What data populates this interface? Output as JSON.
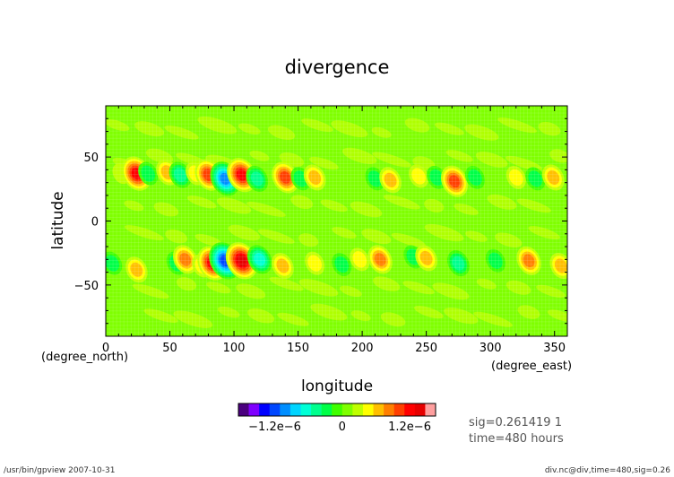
{
  "chart_data": {
    "type": "heatmap",
    "title": "divergence",
    "xlabel": "longitude",
    "ylabel": "latitude",
    "x_unit": "(degree_east)",
    "y_unit": "(degree_north)",
    "xlim": [
      0,
      360
    ],
    "ylim": [
      -90,
      90
    ],
    "x_ticks": [
      0,
      50,
      100,
      150,
      200,
      250,
      300,
      350
    ],
    "y_ticks": [
      50,
      0,
      -50
    ],
    "y_tick_labels": [
      "50",
      "0",
      "−50"
    ],
    "background_color": "#7fff00",
    "colorbar": {
      "colors": [
        "#4b007f",
        "#7f00ff",
        "#0000ff",
        "#0047ff",
        "#008eff",
        "#00d4ff",
        "#00ffd6",
        "#00ff8e",
        "#00ff47",
        "#3fff00",
        "#7fff00",
        "#bfff00",
        "#ffff00",
        "#ffbf00",
        "#ff7f00",
        "#ff3f00",
        "#ff0000",
        "#e60000",
        "#ff9f9f"
      ],
      "tick_values": [
        -1.2e-06,
        0,
        1.2e-06
      ],
      "tick_labels": [
        "−1.2e−6",
        "0",
        "1.2e−6"
      ]
    },
    "features": [
      {
        "lon": 12,
        "lat": 37,
        "level": 1
      },
      {
        "lon": 24,
        "lat": 37,
        "level": 6
      },
      {
        "lon": 33,
        "lat": 37,
        "level": -2
      },
      {
        "lon": 48,
        "lat": 38,
        "level": 3
      },
      {
        "lon": 58,
        "lat": 36,
        "level": -3
      },
      {
        "lon": 70,
        "lat": 37,
        "level": 2
      },
      {
        "lon": 80,
        "lat": 36,
        "level": 5
      },
      {
        "lon": 93,
        "lat": 33,
        "level": -6
      },
      {
        "lon": 106,
        "lat": 36,
        "level": 6
      },
      {
        "lon": 118,
        "lat": 33,
        "level": -3
      },
      {
        "lon": 140,
        "lat": 34,
        "level": 5
      },
      {
        "lon": 152,
        "lat": 33,
        "level": -2
      },
      {
        "lon": 163,
        "lat": 34,
        "level": 3
      },
      {
        "lon": 210,
        "lat": 33,
        "level": -2
      },
      {
        "lon": 222,
        "lat": 32,
        "level": 3
      },
      {
        "lon": 244,
        "lat": 35,
        "level": 2
      },
      {
        "lon": 258,
        "lat": 34,
        "level": -2
      },
      {
        "lon": 272,
        "lat": 31,
        "level": 5
      },
      {
        "lon": 288,
        "lat": 34,
        "level": -2
      },
      {
        "lon": 320,
        "lat": 34,
        "level": 2
      },
      {
        "lon": 335,
        "lat": 33,
        "level": -2
      },
      {
        "lon": 349,
        "lat": 34,
        "level": 3
      },
      {
        "lon": 5,
        "lat": -33,
        "level": -2
      },
      {
        "lon": 24,
        "lat": -38,
        "level": 3
      },
      {
        "lon": 55,
        "lat": -33,
        "level": -2
      },
      {
        "lon": 62,
        "lat": -30,
        "level": 4
      },
      {
        "lon": 75,
        "lat": -35,
        "level": 2
      },
      {
        "lon": 83,
        "lat": -33,
        "level": 6
      },
      {
        "lon": 93,
        "lat": -31,
        "level": -7
      },
      {
        "lon": 106,
        "lat": -31,
        "level": 7
      },
      {
        "lon": 120,
        "lat": -30,
        "level": -4
      },
      {
        "lon": 138,
        "lat": -35,
        "level": 3
      },
      {
        "lon": 163,
        "lat": -33,
        "level": 2
      },
      {
        "lon": 184,
        "lat": -34,
        "level": -2
      },
      {
        "lon": 198,
        "lat": -30,
        "level": 2
      },
      {
        "lon": 214,
        "lat": -30,
        "level": 4
      },
      {
        "lon": 240,
        "lat": -28,
        "level": -2
      },
      {
        "lon": 250,
        "lat": -29,
        "level": 3
      },
      {
        "lon": 275,
        "lat": -33,
        "level": -3
      },
      {
        "lon": 304,
        "lat": -31,
        "level": -2
      },
      {
        "lon": 330,
        "lat": -31,
        "level": 4
      },
      {
        "lon": 355,
        "lat": -35,
        "level": 3
      }
    ]
  },
  "info": {
    "sig_line": "sig=0.261419 1",
    "time_line": "time=480 hours"
  },
  "footer": {
    "left": "/usr/bin/gpview  2007-10-31",
    "right": "div.nc@div,time=480,sig=0.26"
  }
}
